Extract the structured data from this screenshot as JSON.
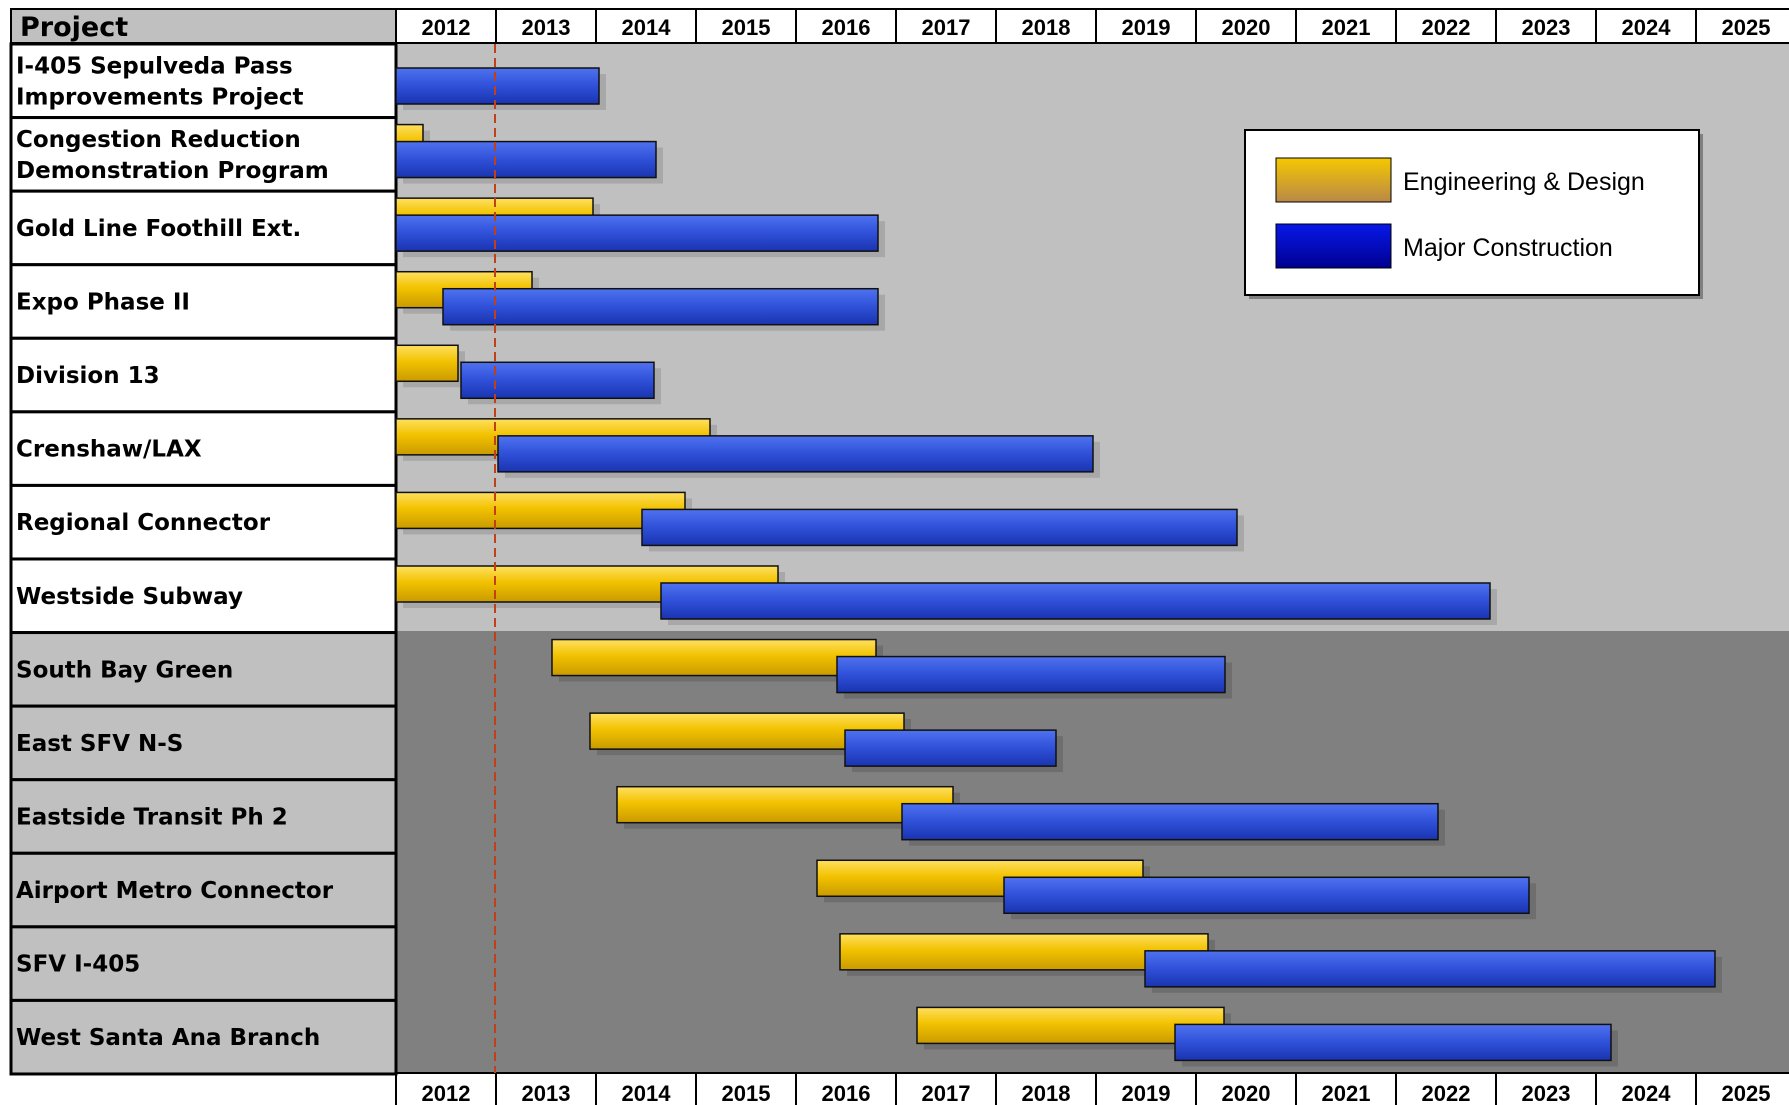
{
  "chart_data": {
    "type": "gantt",
    "header_label": "Project",
    "years": [
      "2012",
      "2013",
      "2014",
      "2015",
      "2016",
      "2017",
      "2018",
      "2019",
      "2020",
      "2021",
      "2022",
      "2023",
      "2024",
      "2025"
    ],
    "xlim": [
      2012,
      2026
    ],
    "today_marker": 2013.0,
    "legend": {
      "placement": "top-right",
      "items": [
        {
          "key": "eng",
          "label": "Engineering & Design",
          "color": "#F2C200"
        },
        {
          "key": "con",
          "label": "Major Construction",
          "color": "#2F50D8"
        }
      ]
    },
    "projects": [
      {
        "name": [
          "I-405 Sepulveda Pass",
          "Improvements Project"
        ],
        "group": "light",
        "eng": null,
        "con": [
          2012.0,
          2014.03
        ]
      },
      {
        "name": [
          "Congestion Reduction",
          "Demonstration Program"
        ],
        "group": "light",
        "eng": [
          2012.0,
          2012.27
        ],
        "con": [
          2012.0,
          2014.6
        ]
      },
      {
        "name": [
          "Gold Line Foothill Ext."
        ],
        "group": "light",
        "eng": [
          2012.0,
          2013.97
        ],
        "con": [
          2012.0,
          2016.82
        ]
      },
      {
        "name": [
          "Expo Phase II"
        ],
        "group": "light",
        "eng": [
          2012.0,
          2013.36
        ],
        "con": [
          2012.47,
          2016.82
        ]
      },
      {
        "name": [
          "Division 13"
        ],
        "group": "light",
        "eng": [
          2012.0,
          2012.62
        ],
        "con": [
          2012.65,
          2014.58
        ]
      },
      {
        "name": [
          "Crenshaw/LAX"
        ],
        "group": "light",
        "eng": [
          2012.0,
          2015.14
        ],
        "con": [
          2013.02,
          2018.97
        ]
      },
      {
        "name": [
          "Regional Connector"
        ],
        "group": "light",
        "eng": [
          2012.0,
          2014.89
        ],
        "con": [
          2014.46,
          2020.41
        ]
      },
      {
        "name": [
          "Westside Subway"
        ],
        "group": "light",
        "eng": [
          2012.0,
          2015.82
        ],
        "con": [
          2014.65,
          2022.94
        ]
      },
      {
        "name": [
          "South Bay Green"
        ],
        "group": "dark",
        "eng": [
          2013.56,
          2016.8
        ],
        "con": [
          2016.41,
          2020.29
        ]
      },
      {
        "name": [
          "East SFV N-S"
        ],
        "group": "dark",
        "eng": [
          2013.94,
          2017.08
        ],
        "con": [
          2016.49,
          2018.6
        ]
      },
      {
        "name": [
          "Eastside Transit Ph 2"
        ],
        "group": "dark",
        "eng": [
          2014.21,
          2017.57
        ],
        "con": [
          2017.06,
          2022.42
        ]
      },
      {
        "name": [
          "Airport Metro Connector"
        ],
        "group": "dark",
        "eng": [
          2016.21,
          2019.47
        ],
        "con": [
          2018.08,
          2023.33
        ]
      },
      {
        "name": [
          "SFV I-405"
        ],
        "group": "dark",
        "eng": [
          2016.44,
          2020.12
        ],
        "con": [
          2019.49,
          2025.19
        ]
      },
      {
        "name": [
          "West Santa Ana Branch"
        ],
        "group": "dark",
        "eng": [
          2017.21,
          2020.28
        ],
        "con": [
          2019.79,
          2024.15
        ]
      }
    ]
  }
}
